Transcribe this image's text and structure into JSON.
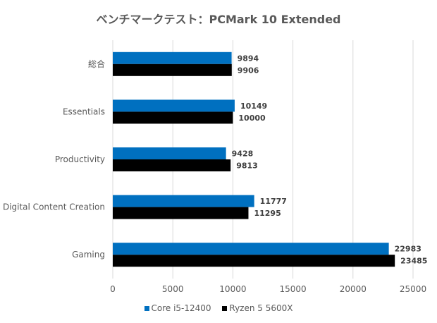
{
  "chart_data": {
    "type": "bar",
    "orientation": "horizontal",
    "title": "ベンチマークテスト：PCMark 10 Extended",
    "categories": [
      "総合",
      "Essentials",
      "Productivity",
      "Digital Content Creation",
      "Gaming"
    ],
    "series": [
      {
        "name": "Core i5-12400",
        "color": "#0070C0",
        "values": [
          9894,
          10149,
          9428,
          11777,
          22983
        ]
      },
      {
        "name": "Ryzen 5 5600X",
        "color": "#000000",
        "values": [
          9906,
          10000,
          9813,
          11295,
          23485
        ]
      }
    ],
    "xlim": [
      0,
      25000
    ],
    "xticks": [
      "0",
      "5000",
      "10000",
      "15000",
      "20000",
      "25000"
    ],
    "grid": true,
    "legend": "bottom",
    "data_labels": true
  }
}
